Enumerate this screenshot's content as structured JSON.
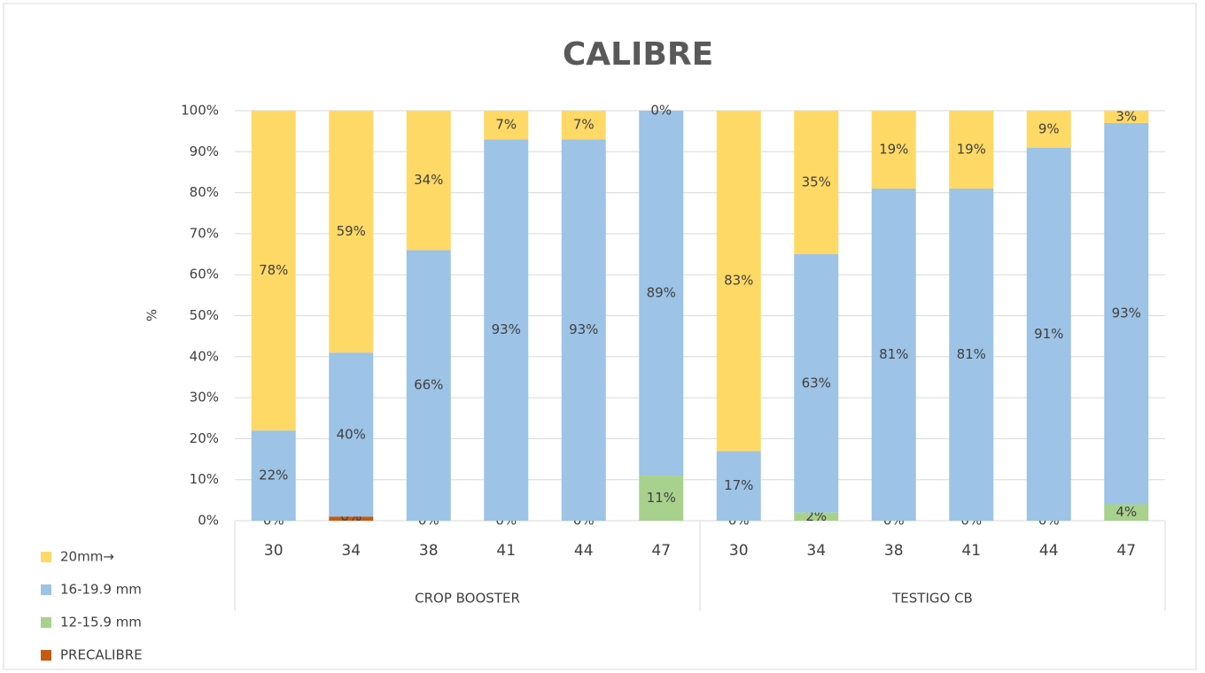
{
  "chart_data": {
    "type": "stacked_bar",
    "title": "CALIBRE",
    "y_label": "%",
    "groups": [
      {
        "label": "CROP BOOSTER",
        "categories": [
          "30",
          "34",
          "38",
          "41",
          "44",
          "47"
        ]
      },
      {
        "label": "TESTIGO CB",
        "categories": [
          "30",
          "34",
          "38",
          "41",
          "44",
          "47"
        ]
      }
    ],
    "series": [
      {
        "name": "PRECALIBRE",
        "color": "#c55a11",
        "values": [
          0,
          1,
          0,
          0,
          0,
          0,
          0,
          0,
          0,
          0,
          0,
          0
        ]
      },
      {
        "name": "12-15.9 mm",
        "color": "#a9d18e",
        "values": [
          0,
          0,
          0,
          0,
          0,
          11,
          0,
          2,
          0,
          0,
          0,
          4
        ],
        "value_labels": [
          "0%",
          "0%",
          "0%",
          "0%",
          "0%",
          "11%",
          "0%",
          "2%",
          "0%",
          "0%",
          "0%",
          "4%"
        ]
      },
      {
        "name": "16-19.9 mm",
        "color": "#9dc3e6",
        "values": [
          22,
          40,
          66,
          93,
          93,
          89,
          17,
          63,
          81,
          81,
          91,
          93
        ],
        "value_labels": [
          "22%",
          "40%",
          "66%",
          "93%",
          "93%",
          "89%",
          "17%",
          "63%",
          "81%",
          "81%",
          "91%",
          "93%"
        ]
      },
      {
        "name": "20mm→",
        "color": "#ffd966",
        "values": [
          78,
          59,
          34,
          7,
          7,
          0,
          83,
          35,
          19,
          19,
          9,
          3
        ],
        "value_labels": [
          "78%",
          "59%",
          "34%",
          "7%",
          "7%",
          "0%",
          "83%",
          "35%",
          "19%",
          "19%",
          "9%",
          "3%"
        ]
      }
    ],
    "ylim": [
      0,
      100
    ],
    "yticks": [
      {
        "value": 0,
        "label": "0%"
      },
      {
        "value": 10,
        "label": "10%"
      },
      {
        "value": 20,
        "label": "20%"
      },
      {
        "value": 30,
        "label": "30%"
      },
      {
        "value": 40,
        "label": "40%"
      },
      {
        "value": 50,
        "label": "50%"
      },
      {
        "value": 60,
        "label": "60%"
      },
      {
        "value": 70,
        "label": "70%"
      },
      {
        "value": 80,
        "label": "80%"
      },
      {
        "value": 90,
        "label": "90%"
      },
      {
        "value": 100,
        "label": "100%"
      }
    ],
    "grid": true,
    "legend": "bottom-left"
  }
}
